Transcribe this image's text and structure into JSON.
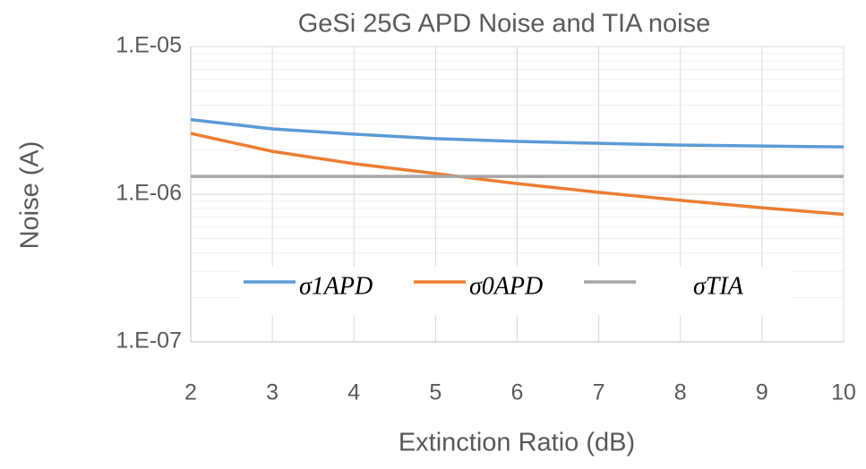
{
  "chart_data": {
    "type": "line",
    "title": "GeSi 25G APD Noise and TIA noise",
    "x_label": "Extinction Ratio (dB)",
    "y_label": "Noise (A)",
    "x": [
      2,
      3,
      4,
      5,
      6,
      7,
      8,
      9,
      10
    ],
    "series": [
      {
        "name": "σ1APD",
        "color": "#5b9bd5",
        "values": [
          3.2e-06,
          2.77e-06,
          2.55e-06,
          2.38e-06,
          2.28e-06,
          2.21e-06,
          2.15e-06,
          2.12e-06,
          2.09e-06
        ]
      },
      {
        "name": "σ0APD",
        "color": "#ed7d31",
        "values": [
          2.58e-06,
          1.95e-06,
          1.61e-06,
          1.38e-06,
          1.18e-06,
          1.03e-06,
          9.1e-07,
          8.1e-07,
          7.3e-07
        ]
      },
      {
        "name": "σTIA",
        "color": "#a5a5a5",
        "values": [
          1.32e-06,
          1.32e-06,
          1.32e-06,
          1.32e-06,
          1.32e-06,
          1.32e-06,
          1.32e-06,
          1.32e-06,
          1.32e-06
        ]
      }
    ],
    "xlim": [
      2,
      10
    ],
    "xticks": [
      2,
      3,
      4,
      5,
      6,
      7,
      8,
      9,
      10
    ],
    "ylim": [
      1e-07,
      1e-05
    ],
    "yticks": [
      {
        "value": 1e-07,
        "label": "1.E-07"
      },
      {
        "value": 1e-06,
        "label": "1.E-06"
      },
      {
        "value": 1e-05,
        "label": "1.E-05"
      }
    ],
    "y_log": true,
    "grid": true,
    "legend": "center"
  }
}
